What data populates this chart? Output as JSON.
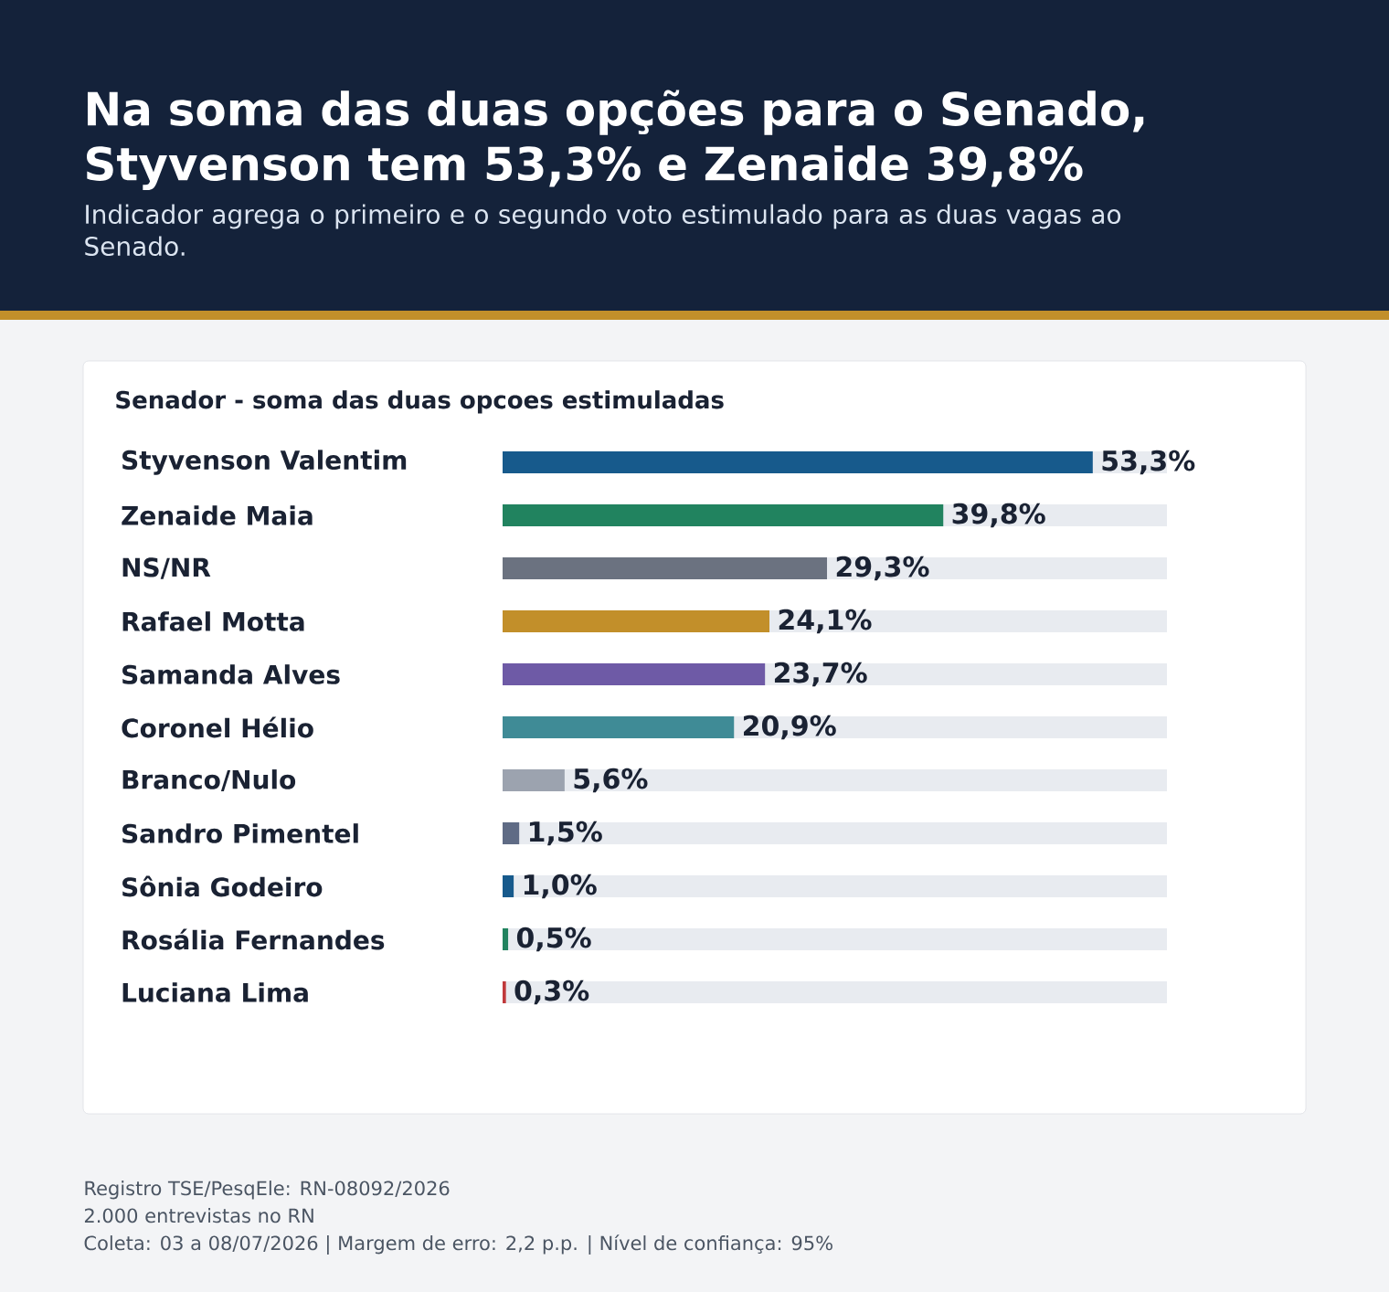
{
  "chart_data": {
    "type": "bar",
    "orientation": "horizontal",
    "title": "Na soma das duas opções para o Senado, Styvenson tem 53,3% e Zenaide 39,8%",
    "subtitle": "Indicador agrega o primeiro e o segundo voto estimulado para as duas vagas ao Senado.",
    "categories": [
      "Styvenson Valentim",
      "Zenaide Maia",
      "NS/NR",
      "Rafael Motta",
      "Samanda Alves",
      "Coronel Hélio",
      "Branco/Nulo",
      "Sandro Pimentel",
      "Sônia Godeiro",
      "Rosália Fernandes",
      "Luciana Lima"
    ],
    "values": [
      53.3,
      39.8,
      29.3,
      24.1,
      23.7,
      20.9,
      5.6,
      1.5,
      1.0,
      0.5,
      0.3
    ],
    "value_labels": [
      "53,3%",
      "39,8%",
      "29,3%",
      "24,1%",
      "23,7%",
      "20,9%",
      "5,6%",
      "1,5%",
      "1,0%",
      "0,5%",
      "0,3%"
    ],
    "colors": [
      "#175a8c",
      "#21835f",
      "#6b7280",
      "#c28f2a",
      "#6e5aa6",
      "#3f8b96",
      "#9ca3af",
      "#5f6b85",
      "#175a8c",
      "#21835f",
      "#c0393b"
    ],
    "xlim": [
      0,
      60
    ],
    "tick_labels": "y",
    "annotations": [
      "Senador - soma das duas opcoes estimuladas",
      "Registro TSE/PesqEle: RN-08092/2026",
      "2.000 entrevistas no RN",
      "Coleta: 03 a 08/07/2026 | Margem de erro: 2,2 p.p. | Nível de confiança: 95%"
    ]
  }
}
